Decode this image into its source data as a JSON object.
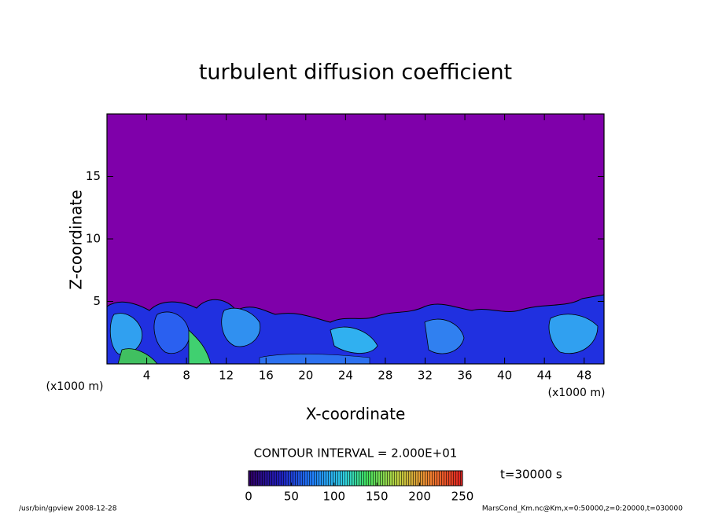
{
  "chart_data": {
    "type": "contour",
    "title": "turbulent diffusion coefficient",
    "x_label": "X-coordinate",
    "y_label": "Z-coordinate",
    "x_unit": "(x1000 m)",
    "y_unit": "(x1000 m)",
    "xlim": [
      0,
      50
    ],
    "xticks": [
      4,
      8,
      12,
      16,
      20,
      24,
      28,
      32,
      36,
      40,
      44,
      48
    ],
    "ylim": [
      0,
      20
    ],
    "yticks": [
      5,
      10,
      15
    ],
    "contour_interval": "CONTOUR INTERVAL = 2.000E+01",
    "colorbar_lim": [
      0,
      250
    ],
    "colorbar_ticks": [
      0,
      50,
      100,
      150,
      200,
      250
    ],
    "time_label": "t=30000 s",
    "footer_left": "/usr/bin/gpview  2008-12-28",
    "footer_right": "MarsCond_Km.nc@Km,x=0:50000,z=0:20000,t=030000"
  }
}
